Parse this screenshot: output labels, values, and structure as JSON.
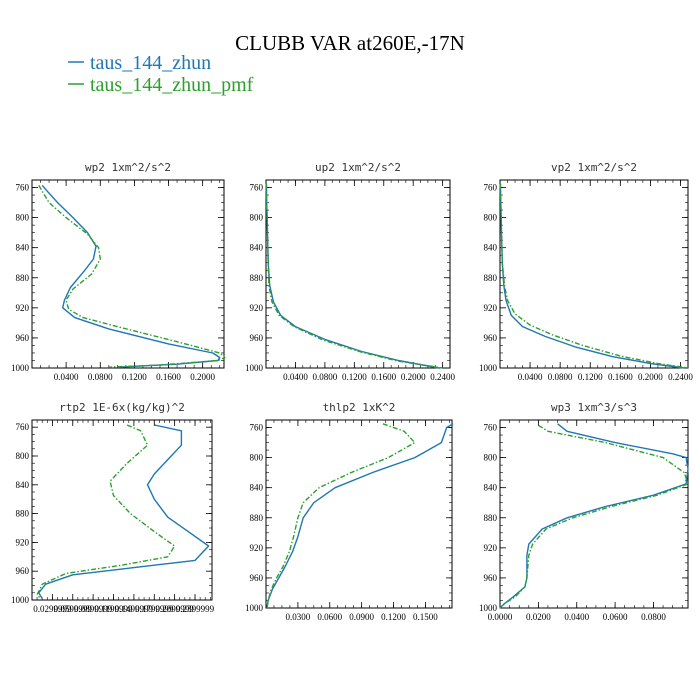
{
  "chart_data": {
    "title": "CLUBB VAR at260E,-17N",
    "legend": [
      {
        "name": "taus_144_zhun",
        "color": "#1f77b4"
      },
      {
        "name": "taus_144_zhun_pmf",
        "color": "#2ca02c"
      }
    ],
    "panels": [
      {
        "type": "line",
        "title": "wp2   1xm^2/s^2",
        "ylim": [
          1000,
          750
        ],
        "yticks": [
          760,
          800,
          840,
          880,
          920,
          960,
          1000
        ],
        "xlim": [
          0,
          0.225
        ],
        "xticks": [
          0.04,
          0.08,
          0.12,
          0.16,
          0.2
        ],
        "xtick_labels": [
          "0.0400",
          "0.0800",
          "0.1200",
          "0.1600",
          "0.2000"
        ],
        "series": [
          {
            "name": "taus_144_zhun",
            "color": "#1f77b4",
            "dashed": false,
            "points": [
              [
                0.012,
                757
              ],
              [
                0.018,
                765
              ],
              [
                0.03,
                780
              ],
              [
                0.048,
                800
              ],
              [
                0.065,
                820
              ],
              [
                0.075,
                838
              ],
              [
                0.072,
                855
              ],
              [
                0.062,
                870
              ],
              [
                0.045,
                893
              ],
              [
                0.038,
                910
              ],
              [
                0.036,
                920
              ],
              [
                0.05,
                933
              ],
              [
                0.09,
                948
              ],
              [
                0.16,
                968
              ],
              [
                0.212,
                980
              ],
              [
                0.22,
                986
              ],
              [
                0.218,
                990
              ],
              [
                0.17,
                995
              ],
              [
                0.1,
                999
              ]
            ]
          },
          {
            "name": "taus_144_zhun_pmf",
            "color": "#2ca02c",
            "dashed": true,
            "points": [
              [
                0.008,
                757
              ],
              [
                0.012,
                765
              ],
              [
                0.02,
                780
              ],
              [
                0.04,
                800
              ],
              [
                0.065,
                822
              ],
              [
                0.078,
                840
              ],
              [
                0.08,
                855
              ],
              [
                0.07,
                875
              ],
              [
                0.048,
                895
              ],
              [
                0.04,
                910
              ],
              [
                0.043,
                922
              ],
              [
                0.06,
                933
              ],
              [
                0.1,
                945
              ],
              [
                0.17,
                965
              ],
              [
                0.22,
                980
              ],
              [
                0.226,
                986
              ],
              [
                0.218,
                990
              ],
              [
                0.15,
                996
              ],
              [
                0.09,
                999
              ]
            ]
          }
        ]
      },
      {
        "type": "line",
        "title": "up2   1xm^2/s^2",
        "ylim": [
          1000,
          750
        ],
        "yticks": [
          760,
          800,
          840,
          880,
          920,
          960,
          1000
        ],
        "xlim": [
          0,
          0.25
        ],
        "xticks": [
          0.04,
          0.08,
          0.12,
          0.16,
          0.2,
          0.24
        ],
        "xtick_labels": [
          "0.0400",
          "0.0800",
          "0.1200",
          "0.1600",
          "0.2000",
          "0.2400"
        ],
        "series": [
          {
            "name": "taus_144_zhun",
            "color": "#1f77b4",
            "dashed": false,
            "points": [
              [
                0.0005,
                755
              ],
              [
                0.001,
                780
              ],
              [
                0.002,
                820
              ],
              [
                0.003,
                860
              ],
              [
                0.005,
                890
              ],
              [
                0.01,
                912
              ],
              [
                0.02,
                930
              ],
              [
                0.04,
                945
              ],
              [
                0.08,
                962
              ],
              [
                0.13,
                978
              ],
              [
                0.18,
                990
              ],
              [
                0.235,
                1000
              ]
            ]
          },
          {
            "name": "taus_144_zhun_pmf",
            "color": "#2ca02c",
            "dashed": true,
            "points": [
              [
                0.0005,
                755
              ],
              [
                0.001,
                780
              ],
              [
                0.002,
                820
              ],
              [
                0.003,
                860
              ],
              [
                0.004,
                890
              ],
              [
                0.008,
                912
              ],
              [
                0.018,
                930
              ],
              [
                0.038,
                945
              ],
              [
                0.078,
                963
              ],
              [
                0.13,
                979
              ],
              [
                0.18,
                991
              ],
              [
                0.24,
                1000
              ]
            ]
          }
        ]
      },
      {
        "type": "line",
        "title": "vp2   1xm^2/s^2",
        "ylim": [
          1000,
          750
        ],
        "yticks": [
          760,
          800,
          840,
          880,
          920,
          960,
          1000
        ],
        "xlim": [
          0,
          0.25
        ],
        "xticks": [
          0.04,
          0.08,
          0.12,
          0.16,
          0.2,
          0.24
        ],
        "xtick_labels": [
          "0.0400",
          "0.0800",
          "0.1200",
          "0.1600",
          "0.2000",
          "0.2400"
        ],
        "series": [
          {
            "name": "taus_144_zhun",
            "color": "#1f77b4",
            "dashed": false,
            "points": [
              [
                0.0005,
                755
              ],
              [
                0.001,
                780
              ],
              [
                0.002,
                820
              ],
              [
                0.003,
                860
              ],
              [
                0.005,
                890
              ],
              [
                0.008,
                910
              ],
              [
                0.015,
                930
              ],
              [
                0.03,
                945
              ],
              [
                0.06,
                958
              ],
              [
                0.1,
                972
              ],
              [
                0.15,
                985
              ],
              [
                0.2,
                994
              ],
              [
                0.245,
                1000
              ]
            ]
          },
          {
            "name": "taus_144_zhun_pmf",
            "color": "#2ca02c",
            "dashed": true,
            "points": [
              [
                0.0005,
                755
              ],
              [
                0.001,
                780
              ],
              [
                0.002,
                820
              ],
              [
                0.003,
                860
              ],
              [
                0.006,
                890
              ],
              [
                0.01,
                910
              ],
              [
                0.02,
                928
              ],
              [
                0.04,
                943
              ],
              [
                0.07,
                956
              ],
              [
                0.11,
                970
              ],
              [
                0.16,
                984
              ],
              [
                0.21,
                994
              ],
              [
                0.25,
                1000
              ]
            ]
          }
        ]
      },
      {
        "type": "line",
        "title": "rtp2   1E-6x(kg/kg)^2",
        "ylim": [
          1000,
          750
        ],
        "yticks": [
          760,
          800,
          840,
          880,
          920,
          960,
          1000
        ],
        "xlim": [
          0,
          0.265
        ],
        "xticks": [
          0.03,
          0.06,
          0.09,
          0.12,
          0.15,
          0.18,
          0.21,
          0.24
        ],
        "xtick_labels": [
          "0.0299999",
          "0.0599999",
          "0.0899999",
          "0.1199999",
          "0.1499999",
          "0.1799999",
          "0.2099999",
          "0.2399999"
        ],
        "series": [
          {
            "name": "taus_144_zhun",
            "color": "#1f77b4",
            "dashed": false,
            "points": [
              [
                0.18,
                757
              ],
              [
                0.22,
                765
              ],
              [
                0.22,
                785
              ],
              [
                0.2,
                805
              ],
              [
                0.18,
                825
              ],
              [
                0.17,
                840
              ],
              [
                0.18,
                860
              ],
              [
                0.2,
                885
              ],
              [
                0.23,
                905
              ],
              [
                0.26,
                925
              ],
              [
                0.24,
                945
              ],
              [
                0.15,
                955
              ],
              [
                0.06,
                965
              ],
              [
                0.02,
                978
              ],
              [
                0.01,
                990
              ],
              [
                0.015,
                998
              ]
            ]
          },
          {
            "name": "taus_144_zhun_pmf",
            "color": "#2ca02c",
            "dashed": true,
            "points": [
              [
                0.14,
                757
              ],
              [
                0.16,
                765
              ],
              [
                0.17,
                785
              ],
              [
                0.14,
                810
              ],
              [
                0.115,
                835
              ],
              [
                0.12,
                855
              ],
              [
                0.145,
                880
              ],
              [
                0.18,
                905
              ],
              [
                0.21,
                925
              ],
              [
                0.2,
                940
              ],
              [
                0.13,
                952
              ],
              [
                0.05,
                963
              ],
              [
                0.015,
                978
              ],
              [
                0.008,
                992
              ],
              [
                0.012,
                998
              ]
            ]
          }
        ]
      },
      {
        "type": "line",
        "title": "thlp2   1xK^2",
        "ylim": [
          1000,
          750
        ],
        "yticks": [
          760,
          800,
          840,
          880,
          920,
          960,
          1000
        ],
        "xlim": [
          0,
          0.175
        ],
        "xticks": [
          0.03,
          0.06,
          0.09,
          0.12,
          0.15
        ],
        "xtick_labels": [
          "0.0300",
          "0.0600",
          "0.0900",
          "0.1200",
          "0.1500"
        ],
        "series": [
          {
            "name": "taus_144_zhun",
            "color": "#1f77b4",
            "dashed": false,
            "points": [
              [
                0.176,
                755
              ],
              [
                0.17,
                760
              ],
              [
                0.165,
                780
              ],
              [
                0.14,
                800
              ],
              [
                0.1,
                820
              ],
              [
                0.065,
                840
              ],
              [
                0.045,
                860
              ],
              [
                0.035,
                880
              ],
              [
                0.03,
                905
              ],
              [
                0.025,
                925
              ],
              [
                0.018,
                945
              ],
              [
                0.012,
                960
              ],
              [
                0.006,
                975
              ],
              [
                0.002,
                990
              ],
              [
                0.001,
                1000
              ]
            ]
          },
          {
            "name": "taus_144_zhun_pmf",
            "color": "#2ca02c",
            "dashed": true,
            "points": [
              [
                0.11,
                755
              ],
              [
                0.13,
                765
              ],
              [
                0.14,
                780
              ],
              [
                0.115,
                800
              ],
              [
                0.08,
                820
              ],
              [
                0.05,
                840
              ],
              [
                0.035,
                860
              ],
              [
                0.03,
                880
              ],
              [
                0.026,
                905
              ],
              [
                0.022,
                925
              ],
              [
                0.016,
                945
              ],
              [
                0.01,
                960
              ],
              [
                0.005,
                975
              ],
              [
                0.002,
                990
              ],
              [
                0.001,
                1000
              ]
            ]
          }
        ]
      },
      {
        "type": "line",
        "title": "wp3   1xm^3/s^3",
        "ylim": [
          1000,
          750
        ],
        "yticks": [
          760,
          800,
          840,
          880,
          920,
          960,
          1000
        ],
        "xlim": [
          0,
          0.098
        ],
        "xticks": [
          0,
          0.02,
          0.04,
          0.06,
          0.08
        ],
        "xtick_labels": [
          "0.0000",
          "0.0200",
          "0.0400",
          "0.0600",
          "0.0800"
        ],
        "series": [
          {
            "name": "taus_144_zhun",
            "color": "#1f77b4",
            "dashed": false,
            "points": [
              [
                0.03,
                755
              ],
              [
                0.035,
                765
              ],
              [
                0.06,
                780
              ],
              [
                0.09,
                795
              ],
              [
                0.097,
                800
              ],
              [
                0.098,
                815
              ],
              [
                0.097,
                835
              ],
              [
                0.08,
                850
              ],
              [
                0.055,
                865
              ],
              [
                0.035,
                880
              ],
              [
                0.022,
                895
              ],
              [
                0.015,
                915
              ],
              [
                0.014,
                930
              ],
              [
                0.014,
                960
              ],
              [
                0.013,
                972
              ],
              [
                0.007,
                985
              ],
              [
                0.002,
                995
              ],
              [
                0.0,
                1000
              ]
            ]
          },
          {
            "name": "taus_144_zhun_pmf",
            "color": "#2ca02c",
            "dashed": true,
            "points": [
              [
                0.02,
                757
              ],
              [
                0.025,
                765
              ],
              [
                0.055,
                780
              ],
              [
                0.085,
                800
              ],
              [
                0.096,
                820
              ],
              [
                0.098,
                835
              ],
              [
                0.082,
                850
              ],
              [
                0.058,
                865
              ],
              [
                0.038,
                880
              ],
              [
                0.024,
                895
              ],
              [
                0.017,
                915
              ],
              [
                0.015,
                930
              ],
              [
                0.014,
                960
              ],
              [
                0.013,
                972
              ],
              [
                0.008,
                985
              ],
              [
                0.002,
                995
              ],
              [
                0.0,
                1000
              ]
            ]
          }
        ]
      }
    ]
  }
}
